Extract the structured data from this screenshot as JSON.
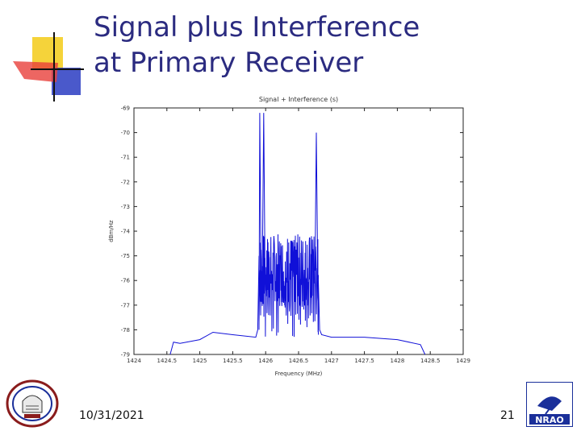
{
  "slide": {
    "title_line1": "Signal plus Interference",
    "title_line2": "at Primary Receiver",
    "date": "10/31/2021",
    "page_number": "21"
  },
  "colors": {
    "title": "#2b2b80",
    "deco_yellow": "#f5d33a",
    "deco_red": "#e8403b",
    "deco_blue": "#2a3cc2",
    "series": "#1010d8",
    "logo_blue": "#1a2f9a"
  },
  "chart_data": {
    "type": "line",
    "title": "Signal + Interference (s)",
    "xlabel": "Frequency (MHz)",
    "ylabel": "dBm/Hz",
    "xlim": [
      1424,
      1429
    ],
    "ylim": [
      -79,
      -69
    ],
    "x_ticks": [
      "1424",
      "1424.5",
      "1425",
      "1425.5",
      "1426",
      "1426.5",
      "1427",
      "1427.5",
      "1428",
      "1428.5",
      "1429"
    ],
    "y_ticks": [
      "-69",
      "-70",
      "-71",
      "-72",
      "-73",
      "-74",
      "-75",
      "-76",
      "-77",
      "-78",
      "-79"
    ],
    "grid": false,
    "series": [
      {
        "name": "",
        "x": [
          1424.55,
          1424.6,
          1424.7,
          1425.0,
          1425.2,
          1425.5,
          1425.85,
          1425.88,
          1425.9,
          1426.0,
          1426.5,
          1426.75,
          1426.8,
          1426.82,
          1426.85,
          1427.0,
          1427.5,
          1428.0,
          1428.35,
          1428.42
        ],
        "y": [
          -79.0,
          -78.5,
          -78.55,
          -78.4,
          -78.1,
          -78.2,
          -78.3,
          -78.0,
          -75.0,
          -69.2,
          -69.6,
          -70.0,
          -76.0,
          -78.0,
          -78.2,
          -78.3,
          -78.3,
          -78.4,
          -78.6,
          -79.0
        ]
      }
    ],
    "interference_band": {
      "x_start": 1425.9,
      "x_end": 1426.8,
      "typical_level": -75.6,
      "peaks": [
        -69.2,
        -69.6,
        -70.0
      ]
    }
  }
}
